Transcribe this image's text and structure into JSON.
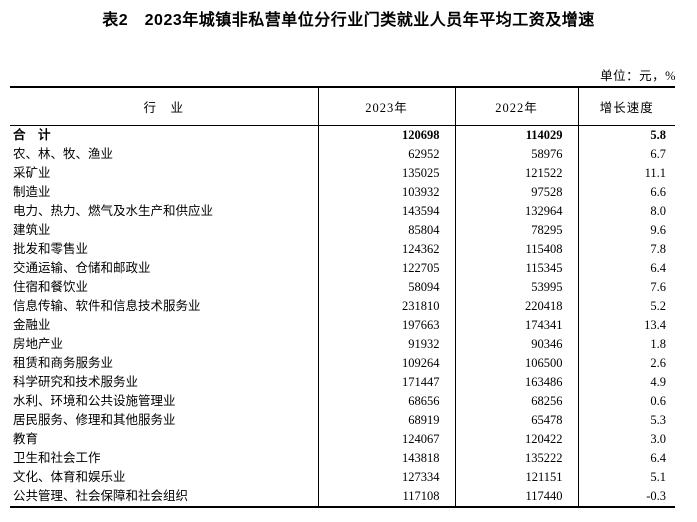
{
  "title": "表2　2023年城镇非私营单位分行业门类就业人员年平均工资及增速",
  "unit_note": "单位：元，%",
  "chart_data": {
    "type": "table",
    "title": "表2　2023年城镇非私营单位分行业门类就业人员年平均工资及增速",
    "unit": "元，%",
    "columns": [
      "行　业",
      "2023年",
      "2022年",
      "增长速度"
    ],
    "bold_row_index": 0,
    "rows": [
      [
        "合　计",
        "120698",
        "114029",
        "5.8"
      ],
      [
        "农、林、牧、渔业",
        "62952",
        "58976",
        "6.7"
      ],
      [
        "采矿业",
        "135025",
        "121522",
        "11.1"
      ],
      [
        "制造业",
        "103932",
        "97528",
        "6.6"
      ],
      [
        "电力、热力、燃气及水生产和供应业",
        "143594",
        "132964",
        "8.0"
      ],
      [
        "建筑业",
        "85804",
        "78295",
        "9.6"
      ],
      [
        "批发和零售业",
        "124362",
        "115408",
        "7.8"
      ],
      [
        "交通运输、仓储和邮政业",
        "122705",
        "115345",
        "6.4"
      ],
      [
        "住宿和餐饮业",
        "58094",
        "53995",
        "7.6"
      ],
      [
        "信息传输、软件和信息技术服务业",
        "231810",
        "220418",
        "5.2"
      ],
      [
        "金融业",
        "197663",
        "174341",
        "13.4"
      ],
      [
        "房地产业",
        "91932",
        "90346",
        "1.8"
      ],
      [
        "租赁和商务服务业",
        "109264",
        "106500",
        "2.6"
      ],
      [
        "科学研究和技术服务业",
        "171447",
        "163486",
        "4.9"
      ],
      [
        "水利、环境和公共设施管理业",
        "68656",
        "68256",
        "0.6"
      ],
      [
        "居民服务、修理和其他服务业",
        "68919",
        "65478",
        "5.3"
      ],
      [
        "教育",
        "124067",
        "120422",
        "3.0"
      ],
      [
        "卫生和社会工作",
        "143818",
        "135222",
        "6.4"
      ],
      [
        "文化、体育和娱乐业",
        "127334",
        "121151",
        "5.1"
      ],
      [
        "公共管理、社会保障和社会组织",
        "117108",
        "117440",
        "-0.3"
      ]
    ]
  }
}
